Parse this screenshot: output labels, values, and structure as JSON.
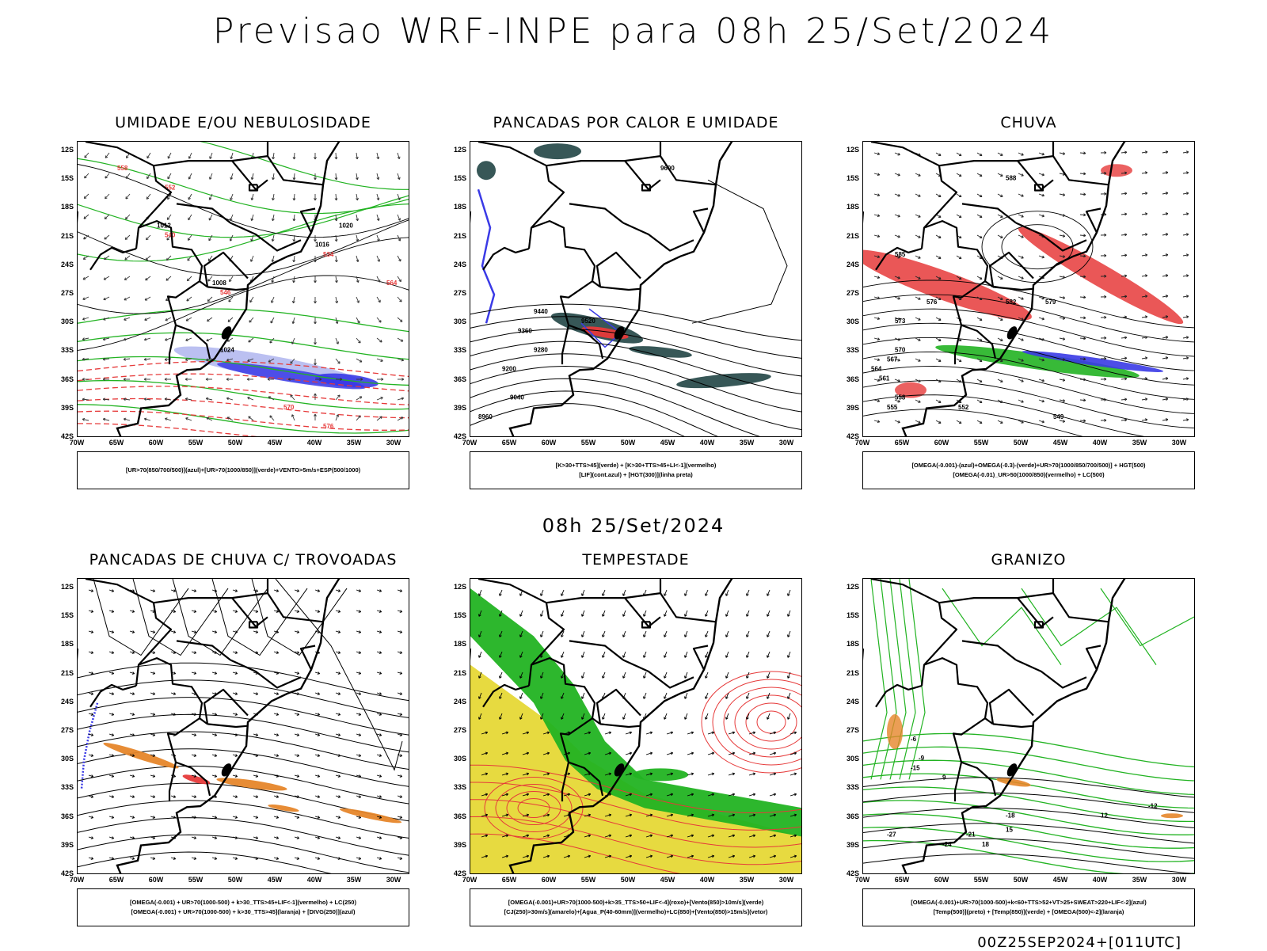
{
  "title": "Previsao WRF-INPE  para 08h 25/Set/2024",
  "mid_title": "08h 25/Set/2024",
  "footer": "00Z25SEP2024+[011UTC]",
  "y_ticks": [
    "12S",
    "15S",
    "18S",
    "21S",
    "24S",
    "27S",
    "30S",
    "33S",
    "36S",
    "39S",
    "42S"
  ],
  "x_ticks": [
    "70W",
    "65W",
    "60W",
    "55W",
    "50W",
    "45W",
    "40W",
    "35W",
    "30W"
  ],
  "colors": {
    "blue": "#3a3ae6",
    "light_blue": "#aab0ee",
    "green": "#22b322",
    "red": "#e63a3a",
    "orange": "#e6862a",
    "yellow": "#e6d836",
    "teal": "#2c4e4e"
  },
  "panels": [
    {
      "title": "UMIDADE E/OU NEBULOSIDADE",
      "legend": [
        "[UR>70(850/700/500)](azul)+[UR>70(1000/850)](verde)+VENTO>5m/s+ESP(500/1000)"
      ],
      "labels": [
        "1008",
        "1012",
        "1016",
        "1020",
        "1024",
        "570",
        "576",
        "564",
        "558",
        "552",
        "546",
        "540",
        "534"
      ]
    },
    {
      "title": "PANCADAS POR CALOR E UMIDADE",
      "legend": [
        "[K>30+TTS>45](verde) + [K>30+TTS>45+LI<-1](vermelho)",
        "[LIF](cont.azul) + [HGT(300)](linha preta)"
      ],
      "labels": [
        "9600",
        "9520",
        "9440",
        "9360",
        "9280",
        "9200",
        "9040",
        "8960"
      ]
    },
    {
      "title": "CHUVA",
      "legend": [
        "[OMEGA(-0.001)-(azul)+OMEGA(-0.3)-(verde)+UR>70(1000/850/700/500)] + HGT(500)",
        "[OMEGA(-0.01)_UR>50(1000/850)(vermelho) + LC(500)"
      ],
      "labels": [
        "588",
        "585",
        "582",
        "579",
        "576",
        "573",
        "570",
        "567",
        "564",
        "561",
        "558",
        "555",
        "552",
        "549"
      ]
    },
    {
      "title": "PANCADAS DE CHUVA C/ TROVOADAS",
      "legend": [
        "[OMEGA(-0.001) + UR>70(1000-500) + k>30_TTS>45+LIF<-1](vermelho) + LC(250)",
        "[OMEGA(-0.001) + UR>70(1000-500) + k>30_TTS>45](laranja) + [DIVG(250)](azul)"
      ],
      "labels": []
    },
    {
      "title": "TEMPESTADE",
      "legend": [
        "[OMEGA(-0.001)+UR>70(1000-500)+k>35_TTS>50+LIF<-4](roxo)+[Vento(850)>10m/s](verde)",
        "[CJ(250)>30m/s](amarelo)+[Agua_P(40-60mm)](vermelho)+LC(850)+[Vento(850)>15m/s](vetor)"
      ],
      "labels": []
    },
    {
      "title": "GRANIZO",
      "legend": [
        "[OMEGA(-0.001)+UR>70(1000-500)+k<60+TTS>52+VT>25+SWEAT>220+LIF<-2](azul)",
        "[Temp(500)](preto) + [Temp(850)](verde) + [OMEGA(500)<-2](laranja)"
      ],
      "labels": [
        "-6",
        "-9",
        "-12",
        "-15",
        "-18",
        "-21",
        "-24",
        "-27",
        "9",
        "12",
        "15",
        "18"
      ]
    }
  ]
}
